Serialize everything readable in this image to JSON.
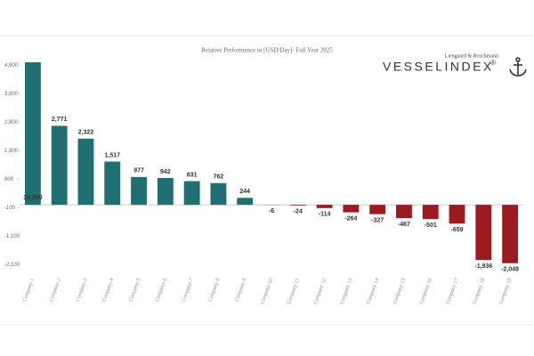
{
  "chart_data": {
    "type": "bar",
    "title": "Relative Performance in [USD/Day]- Full Year 2025",
    "brand": {
      "tagline": "Liengaard & Roschmann",
      "name": "VESSELINDEX",
      "mark": "®"
    },
    "categories": [
      "Company 1",
      "Company 2",
      "Company 3",
      "Company 4",
      "Company 5",
      "Company 6",
      "Company 7",
      "Company 8",
      "Company 9",
      "Company 10",
      "Company 11",
      "Company 12",
      "Company 13",
      "Company 14",
      "Company 15",
      "Company 16",
      "Company 17",
      "Company 18",
      "Company 19"
    ],
    "values": [
      14090,
      2771,
      2322,
      1517,
      977,
      942,
      831,
      762,
      244,
      -6,
      -24,
      -114,
      -264,
      -327,
      -467,
      -501,
      -659,
      -1936,
      -2048
    ],
    "value_labels": [
      "14,090",
      "2,771",
      "2,322",
      "1,517",
      "977",
      "942",
      "831",
      "762",
      "244",
      "-6",
      "-24",
      "-114",
      "-264",
      "-327",
      "-467",
      "-501",
      "-659",
      "-1,936",
      "-2,048"
    ],
    "positive_color": "#1f6f73",
    "negative_color": "#9b1b21",
    "ylim": [
      -2400,
      5000
    ],
    "yticks": [
      {
        "value": 4900,
        "label": "4,900"
      },
      {
        "value": 3900,
        "label": "3,900"
      },
      {
        "value": 2900,
        "label": "2,900"
      },
      {
        "value": 1900,
        "label": "1,900"
      },
      900,
      -100,
      {
        "value": -1100,
        "label": "-1,100"
      },
      {
        "value": -2100,
        "label": "-2,100"
      }
    ],
    "grid": false
  }
}
